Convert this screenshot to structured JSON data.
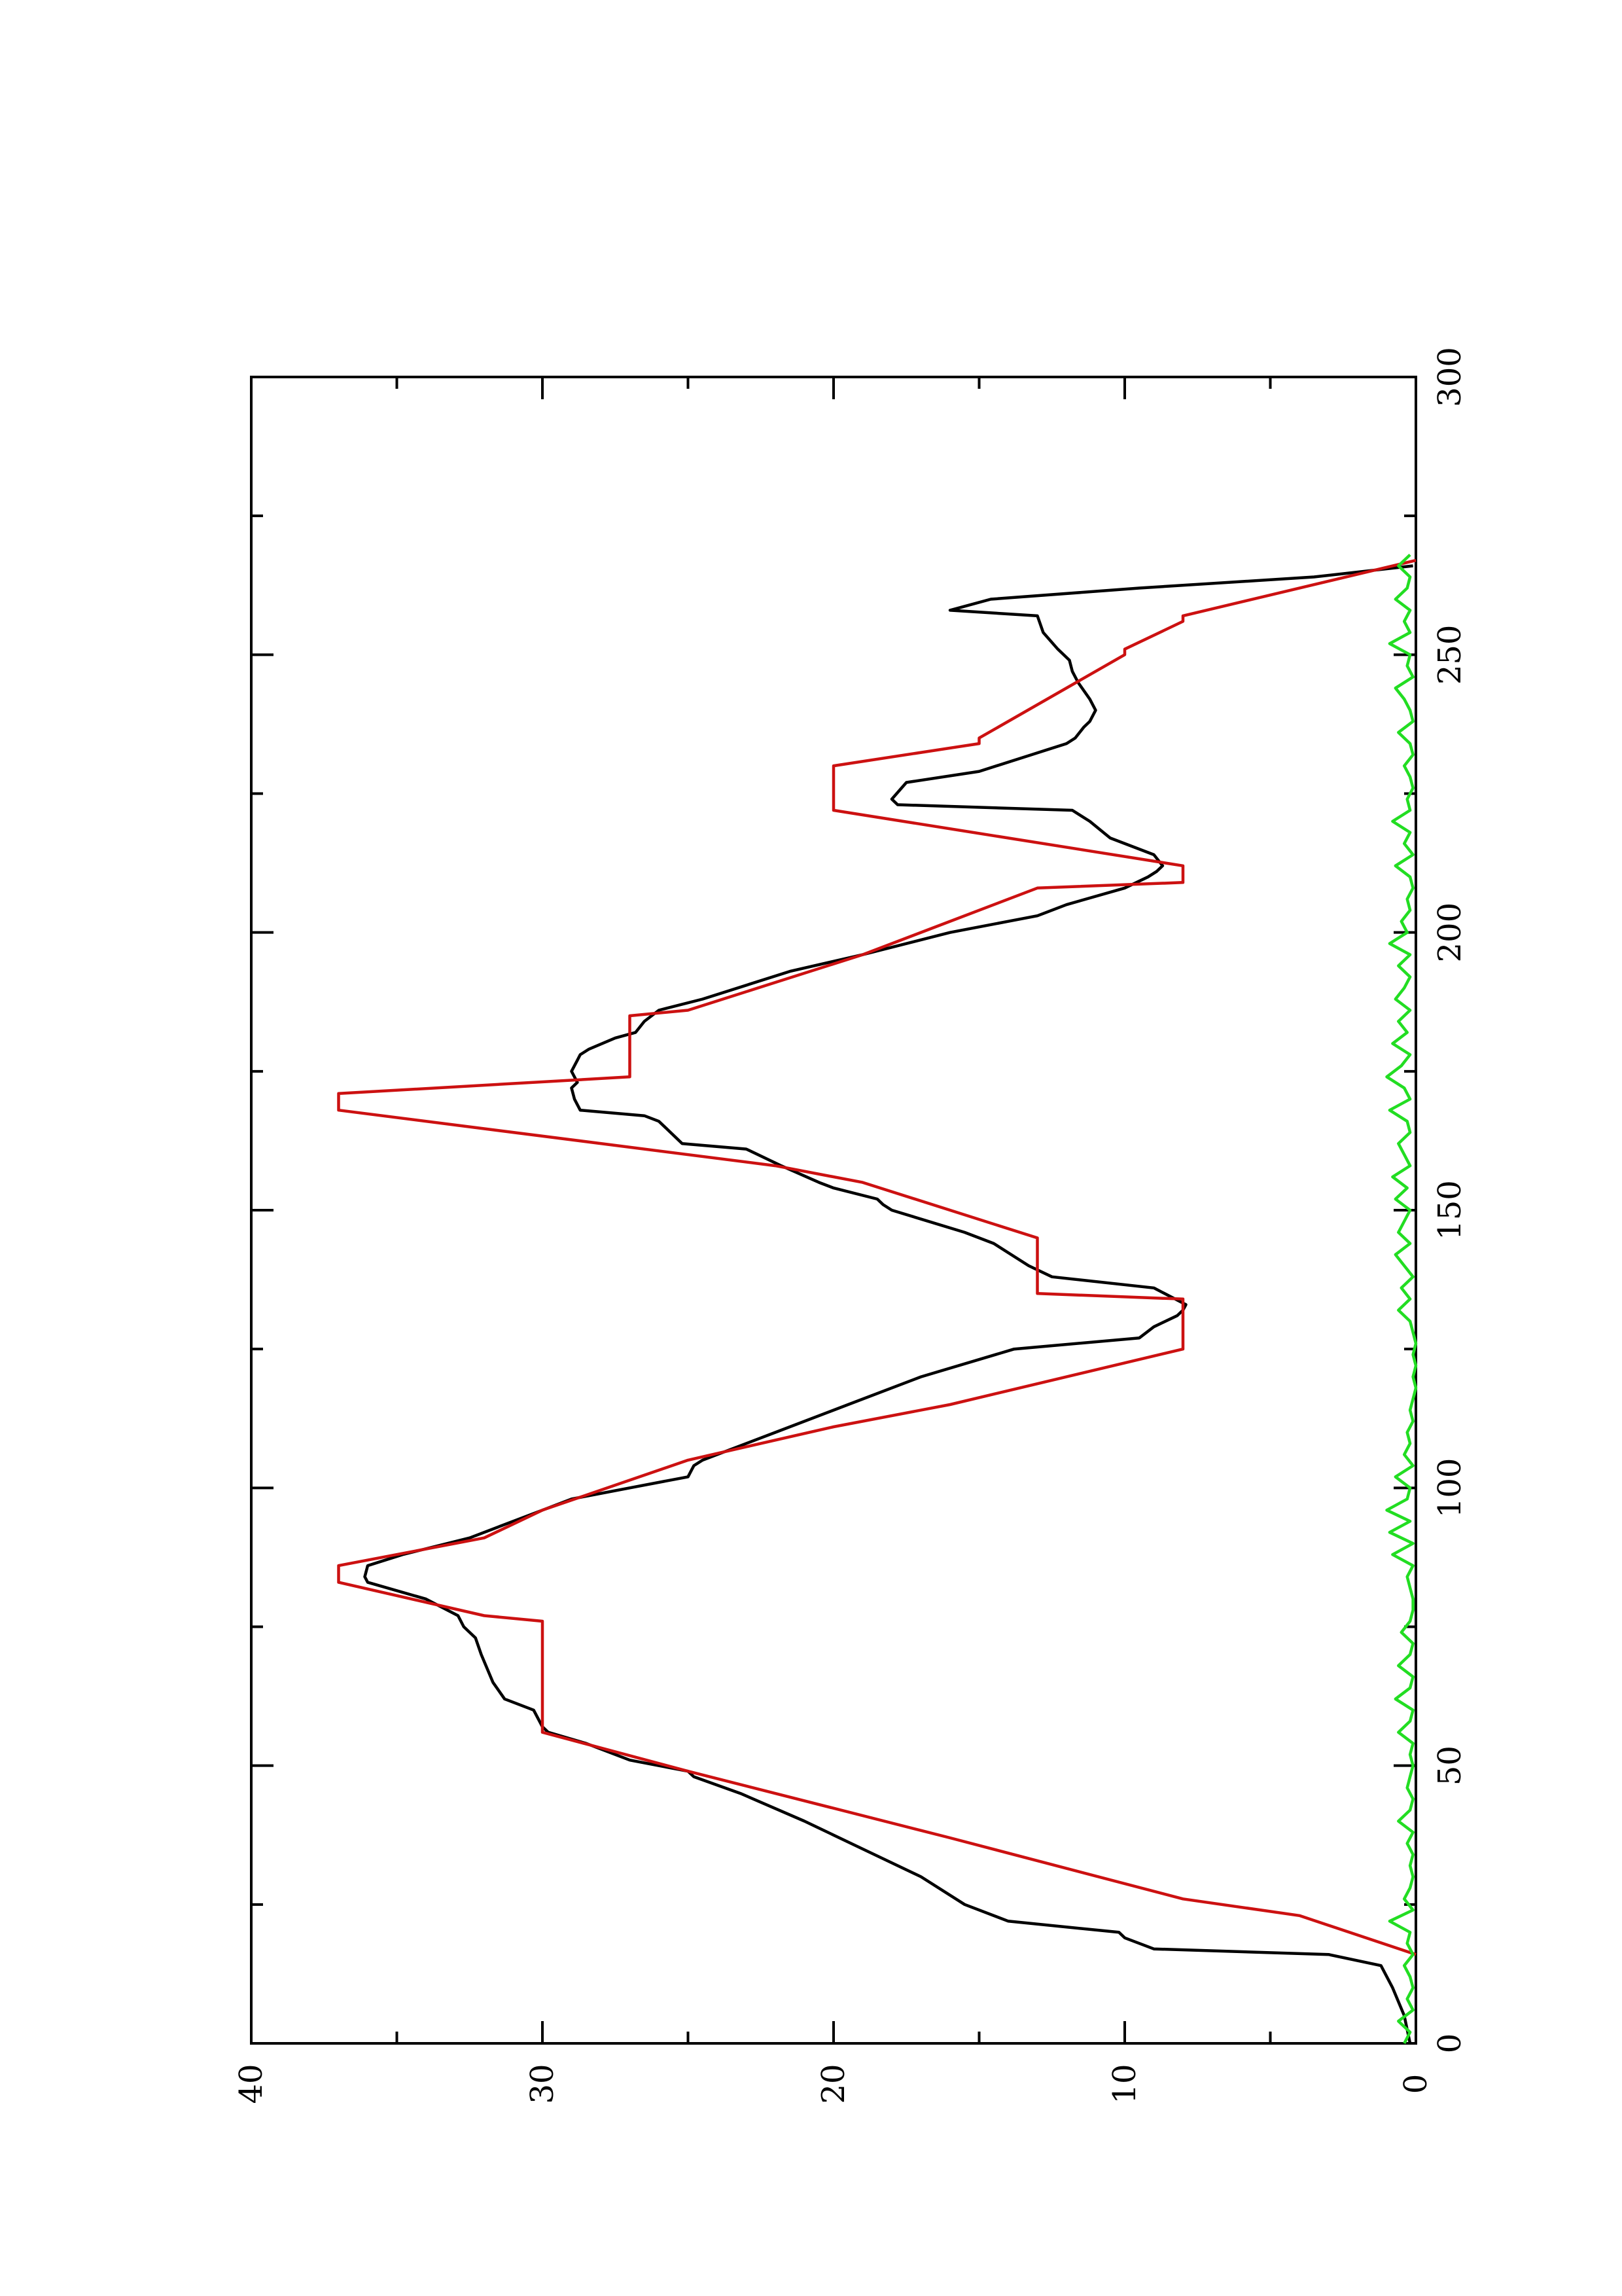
{
  "chart_data": {
    "type": "line",
    "orientation": "rotated-90-ccw",
    "title": "",
    "xlabel": "",
    "ylabel": "",
    "xlim": [
      0,
      300
    ],
    "ylim": [
      0,
      40
    ],
    "x_ticks": [
      0,
      50,
      100,
      150,
      200,
      250,
      300
    ],
    "x_minor_ticks": [
      25,
      75,
      125,
      175,
      225,
      275
    ],
    "y_ticks": [
      0,
      10,
      20,
      30,
      40
    ],
    "y_minor_ticks": [
      5,
      15,
      25,
      35
    ],
    "grid": false,
    "legend": "none",
    "series": [
      {
        "color": "#000000",
        "x": [
          0,
          5,
          10,
          14,
          16,
          17,
          19,
          20,
          22,
          25,
          30,
          35,
          40,
          45,
          48,
          49,
          51,
          54,
          56,
          57,
          60,
          62,
          65,
          70,
          73,
          75,
          77,
          80,
          83,
          84,
          86,
          88,
          91,
          93,
          96,
          98,
          100,
          102,
          104,
          105,
          110,
          115,
          120,
          125,
          127,
          129,
          131,
          132,
          133,
          136,
          138,
          140,
          144,
          146,
          150,
          151,
          152,
          154,
          155,
          158,
          161,
          162,
          166,
          167,
          168,
          170,
          172,
          173,
          175,
          177,
          178,
          179,
          181,
          182,
          184,
          186,
          188,
          193,
          196,
          200,
          202,
          203,
          205,
          208,
          210,
          211,
          212,
          214,
          217,
          220,
          222,
          223,
          224,
          227,
          229,
          232,
          234,
          235,
          237,
          238,
          240,
          242,
          245,
          247,
          249,
          251,
          254,
          257,
          258,
          260,
          262,
          264,
          266
        ],
        "y": [
          0.2,
          0.4,
          0.8,
          1.2,
          3.0,
          9.0,
          10.0,
          10.2,
          14.0,
          15.5,
          17.0,
          19.0,
          21.0,
          23.2,
          24.8,
          25.0,
          27.0,
          28.5,
          29.8,
          30.0,
          30.3,
          31.3,
          31.7,
          32.1,
          32.3,
          32.7,
          32.9,
          34.0,
          36.0,
          36.1,
          36.0,
          34.8,
          32.5,
          31.5,
          30.0,
          29.0,
          27.0,
          25.0,
          24.8,
          24.5,
          22.0,
          19.5,
          17.0,
          13.8,
          9.5,
          9.0,
          8.2,
          8.0,
          7.9,
          9.0,
          12.5,
          13.3,
          14.5,
          15.5,
          18.0,
          18.3,
          18.5,
          20.0,
          20.5,
          21.8,
          23.0,
          25.2,
          26.0,
          26.5,
          28.7,
          28.9,
          29.0,
          28.8,
          29.0,
          28.8,
          28.7,
          28.4,
          27.5,
          26.8,
          26.5,
          26.0,
          24.5,
          21.5,
          19.0,
          16.0,
          14.0,
          13.0,
          12.0,
          10.0,
          9.2,
          8.9,
          8.7,
          9.0,
          10.5,
          11.2,
          11.8,
          17.8,
          18.0,
          17.5,
          15.0,
          13.2,
          12.0,
          11.7,
          11.4,
          11.2,
          11.0,
          11.2,
          11.6,
          11.8,
          11.9,
          12.3,
          12.8,
          13.0,
          16.0,
          14.6,
          9.5,
          3.5,
          0.1
        ]
      },
      {
        "color": "#cc1111",
        "x": [
          16,
          23,
          26,
          37,
          49,
          56,
          76,
          77,
          83,
          86,
          91,
          96,
          105,
          111,
          115,
          125,
          134,
          135,
          145,
          155,
          158,
          168,
          171,
          174,
          185,
          186,
          191,
          196,
          208,
          209,
          212,
          222,
          225,
          230,
          234,
          235,
          250,
          251,
          256,
          257,
          267
        ],
        "y": [
          0,
          4,
          8,
          16,
          25,
          30,
          30,
          32,
          37,
          37,
          32,
          30,
          25,
          20,
          16,
          8,
          8,
          13,
          13,
          19,
          22,
          37,
          37,
          27,
          27,
          25,
          22,
          19,
          13,
          8,
          8,
          20,
          20,
          20,
          15,
          15,
          10,
          10,
          8,
          8,
          0
        ]
      },
      {
        "color": "#22dd22",
        "x": [
          0,
          2,
          4,
          6,
          8,
          10,
          12,
          14,
          16,
          18,
          20,
          22,
          24,
          26,
          28,
          30,
          32,
          34,
          36,
          38,
          40,
          42,
          44,
          46,
          48,
          50,
          52,
          54,
          56,
          58,
          60,
          62,
          64,
          66,
          68,
          70,
          72,
          74,
          76,
          78,
          80,
          82,
          84,
          86,
          88,
          90,
          92,
          94,
          96,
          98,
          100,
          102,
          104,
          106,
          108,
          110,
          112,
          114,
          116,
          118,
          120,
          122,
          124,
          126,
          128,
          130,
          132,
          134,
          136,
          138,
          140,
          142,
          144,
          146,
          148,
          150,
          152,
          154,
          156,
          158,
          160,
          162,
          164,
          166,
          168,
          170,
          172,
          174,
          176,
          178,
          180,
          182,
          184,
          186,
          188,
          190,
          192,
          194,
          196,
          198,
          200,
          202,
          204,
          206,
          208,
          210,
          212,
          214,
          216,
          218,
          220,
          222,
          224,
          226,
          228,
          230,
          232,
          234,
          236,
          238,
          240,
          242,
          244,
          246,
          248,
          250,
          252,
          254,
          256,
          258,
          260,
          262,
          264,
          266,
          268
        ],
        "y": [
          0.4,
          0.2,
          0.6,
          0.1,
          0.3,
          0.1,
          0.2,
          0.4,
          0.1,
          0.3,
          0.2,
          0.9,
          0.1,
          0.4,
          0.2,
          0.1,
          0.2,
          0.1,
          0.3,
          0.1,
          0.6,
          0.2,
          0.1,
          0.3,
          0.2,
          0.1,
          0.2,
          0.1,
          0.6,
          0.2,
          0.1,
          0.7,
          0.2,
          0.1,
          0.6,
          0.2,
          0.1,
          0.5,
          0.2,
          0.1,
          0.1,
          0.2,
          0.3,
          0.1,
          0.8,
          0.1,
          0.9,
          0.2,
          1.0,
          0.3,
          0.2,
          0.7,
          0.1,
          0.4,
          0.2,
          0.3,
          0.1,
          0.2,
          0.1,
          0.0,
          0.1,
          0.0,
          0.1,
          0.0,
          0.1,
          0.2,
          0.6,
          0.2,
          0.5,
          0.1,
          0.4,
          0.7,
          0.2,
          0.6,
          0.4,
          0.2,
          0.7,
          0.3,
          0.8,
          0.2,
          0.4,
          0.6,
          0.2,
          0.3,
          0.9,
          0.2,
          0.4,
          1.0,
          0.5,
          0.2,
          0.8,
          0.3,
          0.6,
          0.2,
          0.7,
          0.4,
          0.2,
          0.6,
          0.2,
          0.9,
          0.3,
          0.5,
          0.2,
          0.3,
          0.1,
          0.2,
          0.7,
          0.1,
          0.4,
          0.2,
          0.8,
          0.2,
          0.3,
          0.1,
          0.2,
          0.4,
          0.1,
          0.2,
          0.6,
          0.1,
          0.2,
          0.4,
          0.7,
          0.1,
          0.3,
          0.2,
          0.9,
          0.2,
          0.4,
          0.2,
          0.7,
          0.3,
          0.2,
          0.6,
          0.2
        ]
      }
    ]
  }
}
